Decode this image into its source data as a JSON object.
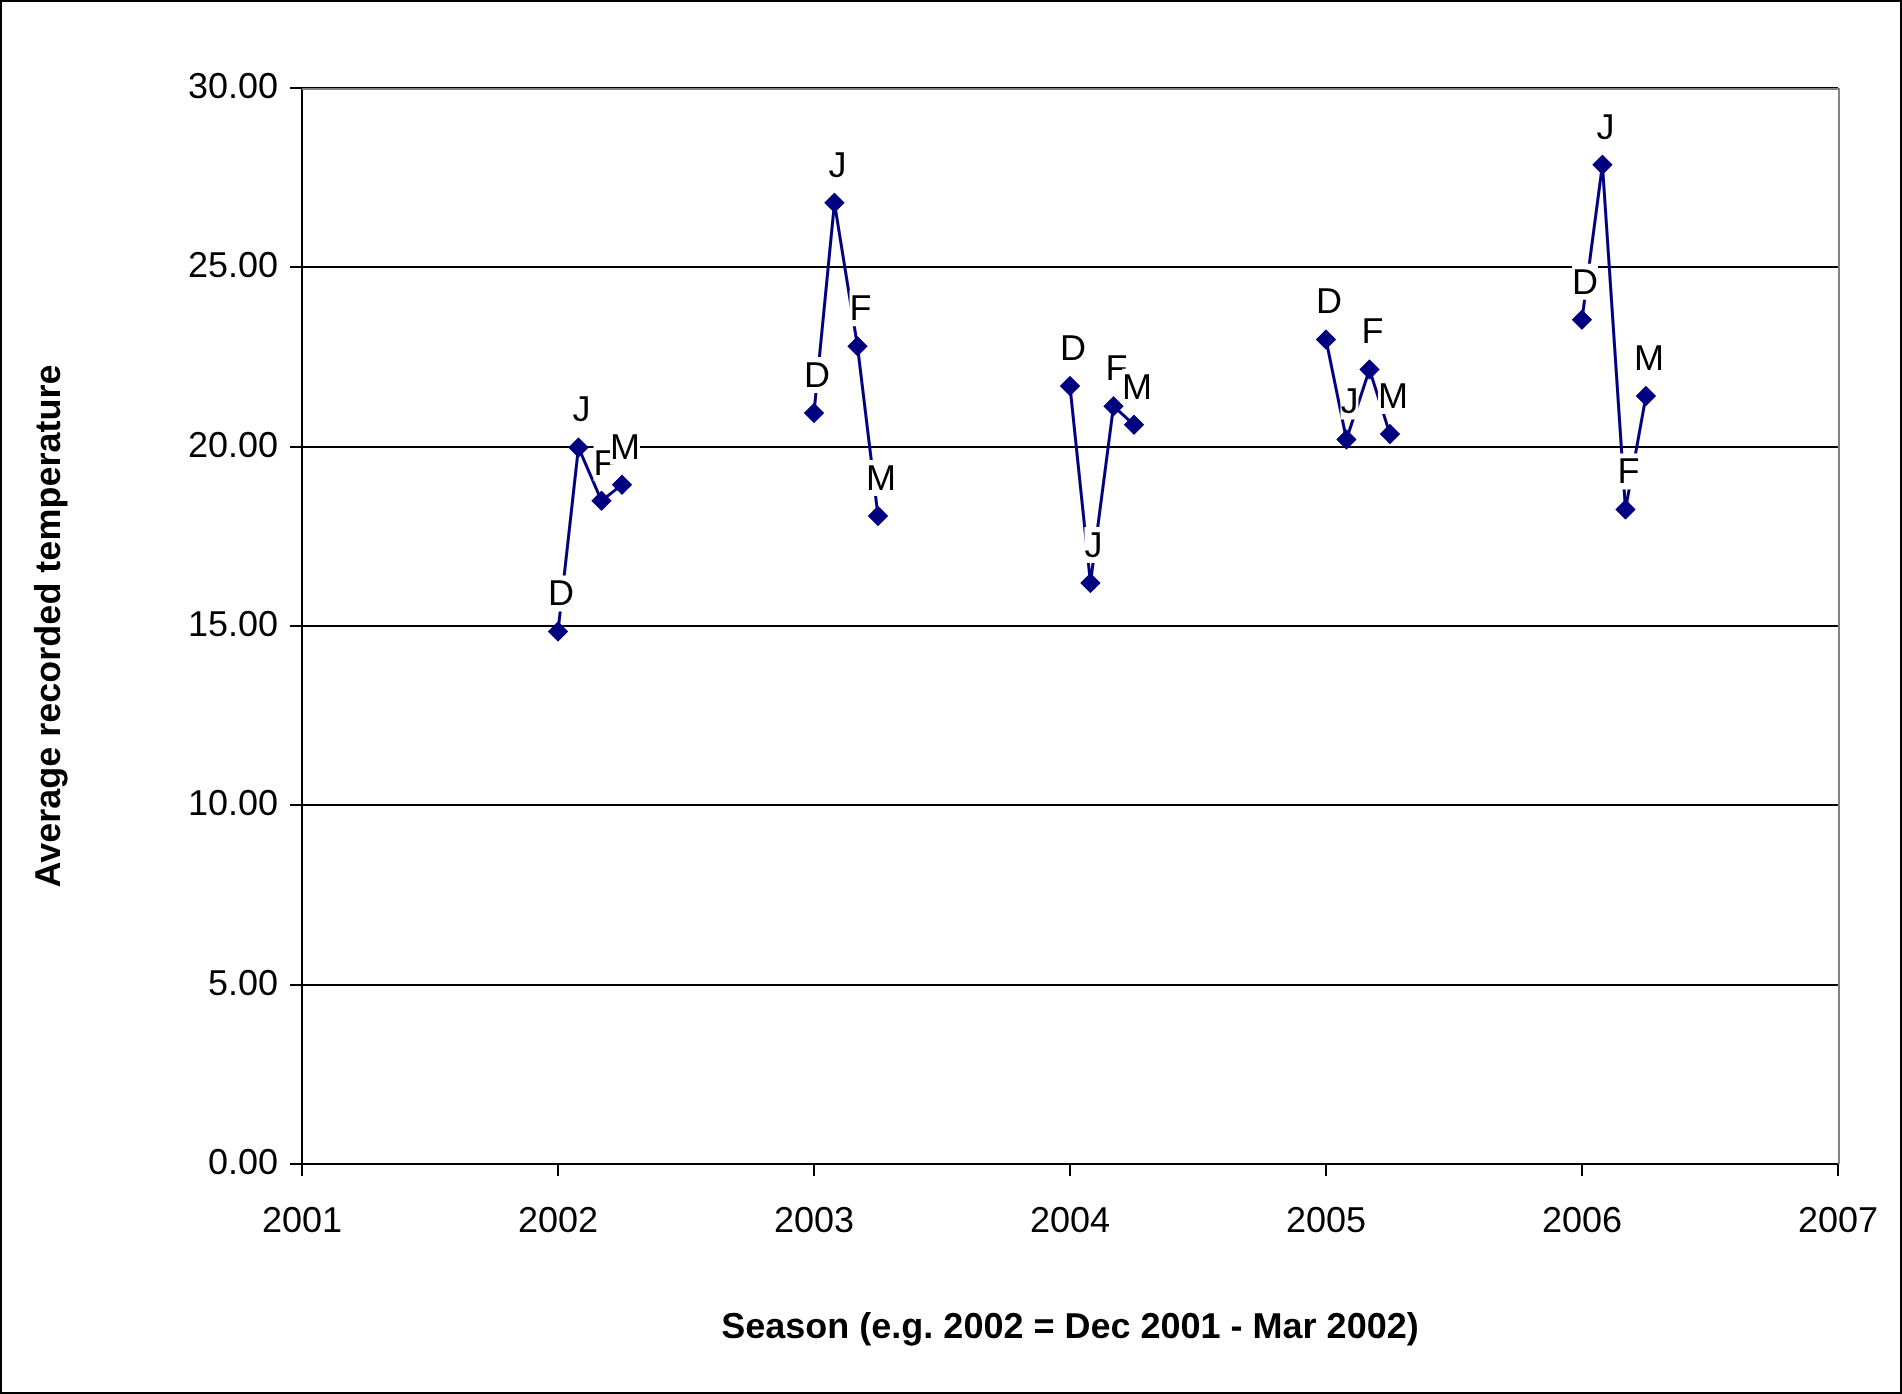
{
  "chart_data": {
    "type": "line",
    "xlabel": "Season (e.g. 2002 = Dec 2001 - Mar 2002)",
    "ylabel": "Average recorded temperature",
    "xlim": [
      2001,
      2007
    ],
    "xticks": [
      2001,
      2002,
      2003,
      2004,
      2005,
      2006,
      2007
    ],
    "ylim": [
      0,
      30
    ],
    "yticks": [
      {
        "value": 0,
        "label": "0.00"
      },
      {
        "value": 5,
        "label": "5.00"
      },
      {
        "value": 10,
        "label": "10.00"
      },
      {
        "value": 15,
        "label": "15.00"
      },
      {
        "value": 20,
        "label": "20.00"
      },
      {
        "value": 25,
        "label": "25.00"
      },
      {
        "value": 30,
        "label": "30.00"
      }
    ],
    "grid": "y",
    "legend": false,
    "marker": "diamond",
    "line_style": "solid",
    "series": [
      {
        "color": "#000080",
        "x": [
          2002,
          2002.08,
          2002.17,
          2002.25
        ],
        "values": [
          14.85,
          19.98,
          18.49,
          18.94
        ],
        "value_labels": [
          "D",
          "J",
          "F",
          "M"
        ]
      },
      {
        "color": "#000080",
        "x": [
          2003,
          2003.08,
          2003.17,
          2003.25
        ],
        "values": [
          20.94,
          26.8,
          22.8,
          18.07
        ],
        "value_labels": [
          "D",
          "J",
          "F",
          "M"
        ]
      },
      {
        "color": "#000080",
        "x": [
          2004,
          2004.08,
          2004.17,
          2004.25
        ],
        "values": [
          21.69,
          16.2,
          21.13,
          20.61
        ],
        "value_labels": [
          "D",
          "J",
          "F",
          "M"
        ]
      },
      {
        "color": "#000080",
        "x": [
          2005,
          2005.08,
          2005.17,
          2005.25
        ],
        "values": [
          22.99,
          20.2,
          22.15,
          20.35
        ],
        "value_labels": [
          "D",
          "J",
          "F",
          "M"
        ]
      },
      {
        "color": "#000080",
        "x": [
          2006,
          2006.08,
          2006.17,
          2006.25
        ],
        "values": [
          23.54,
          27.86,
          18.25,
          21.41
        ],
        "value_labels": [
          "D",
          "J",
          "F",
          "M"
        ]
      }
    ]
  }
}
